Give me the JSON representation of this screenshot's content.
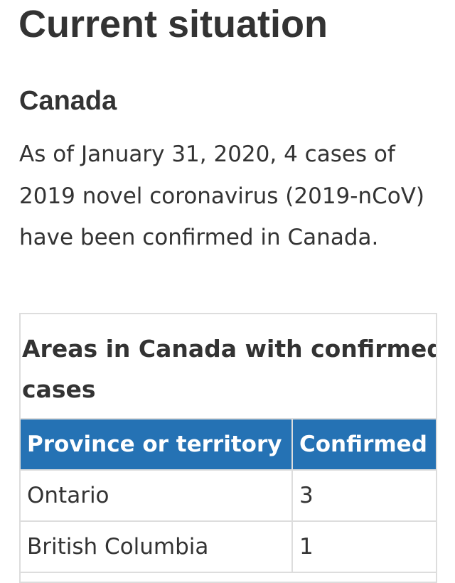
{
  "page": {
    "title": "Current situation"
  },
  "section": {
    "heading": "Canada",
    "intro": "As of January 31, 2020, 4 cases of 2019 novel coronavirus (2019-nCoV) have been confirmed in Canada."
  },
  "table": {
    "caption": "Areas in Canada with confirmed cases",
    "headers": {
      "province": "Province or territory",
      "confirmed": "Confirmed"
    },
    "rows": [
      {
        "province": "Ontario",
        "confirmed": "3"
      },
      {
        "province": "British Columbia",
        "confirmed": "1"
      }
    ]
  },
  "colors": {
    "header_background": "#2572b4",
    "header_text": "#ffffff",
    "body_text": "#333333",
    "border": "#dddddd"
  }
}
